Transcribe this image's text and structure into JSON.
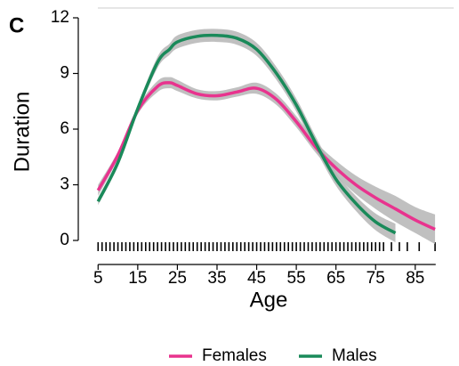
{
  "chart_data": {
    "type": "line",
    "panel_label": "C",
    "x_label": "Age",
    "y_label": "Duration",
    "x": [
      5,
      10,
      15,
      20,
      23,
      25,
      30,
      35,
      40,
      45,
      50,
      55,
      60,
      65,
      70,
      75,
      80,
      85,
      90
    ],
    "series": [
      {
        "name": "Females",
        "color": "#e8338e",
        "values": [
          2.7,
          4.6,
          7.0,
          8.3,
          8.5,
          8.35,
          7.9,
          7.8,
          8.0,
          8.2,
          7.6,
          6.4,
          5.0,
          3.9,
          3.0,
          2.3,
          1.7,
          1.1,
          0.6
        ],
        "lower": [
          2.4,
          4.4,
          6.8,
          8.0,
          8.2,
          8.05,
          7.65,
          7.55,
          7.75,
          7.9,
          7.3,
          6.1,
          4.7,
          3.5,
          2.5,
          1.7,
          1.0,
          0.4,
          -0.2
        ],
        "upper": [
          3.0,
          4.8,
          7.2,
          8.6,
          8.8,
          8.65,
          8.15,
          8.05,
          8.25,
          8.5,
          7.9,
          6.7,
          5.3,
          4.3,
          3.5,
          2.9,
          2.4,
          1.8,
          1.4
        ]
      },
      {
        "name": "Males",
        "color": "#1a8a5a",
        "values": [
          2.1,
          4.2,
          7.1,
          9.6,
          10.3,
          10.7,
          11.0,
          11.05,
          10.9,
          10.3,
          9.0,
          7.3,
          5.2,
          3.3,
          2.0,
          1.0,
          0.4,
          null,
          null
        ],
        "lower": [
          1.9,
          4.0,
          6.9,
          9.3,
          10.0,
          10.35,
          10.65,
          10.7,
          10.55,
          9.95,
          8.65,
          6.95,
          4.85,
          2.95,
          1.6,
          0.55,
          -0.1,
          null,
          null
        ],
        "upper": [
          2.3,
          4.4,
          7.3,
          9.9,
          10.6,
          11.05,
          11.35,
          11.4,
          11.25,
          10.65,
          9.35,
          7.65,
          5.55,
          3.65,
          2.4,
          1.45,
          0.9,
          null,
          null
        ]
      }
    ],
    "band_color": "#b5b5b5",
    "rug": [
      5,
      6,
      7,
      8,
      9,
      10,
      11,
      12,
      13,
      14,
      15,
      16,
      17,
      18,
      19,
      20,
      21,
      22,
      23,
      24,
      25,
      26,
      27,
      28,
      29,
      30,
      31,
      32,
      33,
      34,
      35,
      36,
      37,
      38,
      39,
      40,
      41,
      42,
      43,
      44,
      45,
      46,
      47,
      48,
      49,
      50,
      51,
      52,
      53,
      54,
      55,
      56,
      57,
      58,
      59,
      60,
      61,
      62,
      63,
      64,
      65,
      66,
      67,
      68,
      69,
      70,
      71,
      72,
      73,
      74,
      75,
      76,
      77,
      79,
      81,
      83,
      86,
      90
    ],
    "xlim": [
      0,
      92
    ],
    "ylim": [
      0,
      12
    ],
    "xticks": [
      5,
      15,
      25,
      35,
      45,
      55,
      65,
      75,
      85
    ],
    "yticks": [
      0,
      3,
      6,
      9,
      12
    ]
  }
}
